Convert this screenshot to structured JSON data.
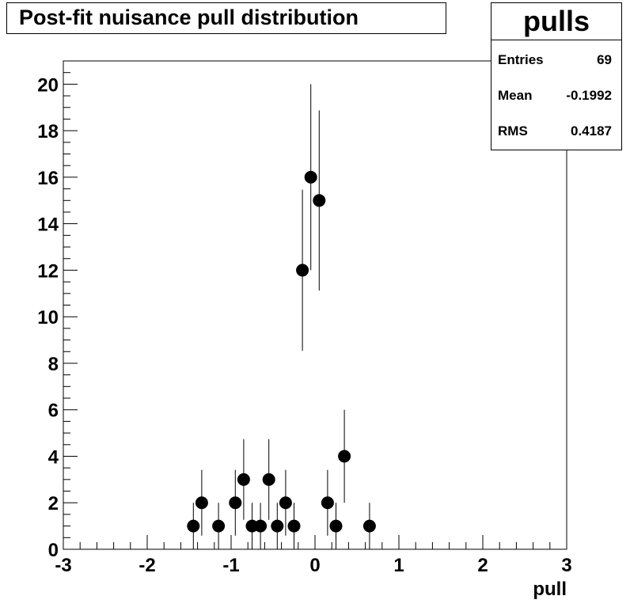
{
  "title": "Post-fit nuisance pull distribution",
  "stats": {
    "name": "pulls",
    "rows": [
      {
        "label": "Entries",
        "value": "69"
      },
      {
        "label": "Mean",
        "value": "-0.1992"
      },
      {
        "label": "RMS",
        "value": "0.4187"
      }
    ]
  },
  "chart_data": {
    "type": "scatter",
    "title": "Post-fit nuisance pull distribution",
    "xlabel": "pull",
    "ylabel": "",
    "xlim": [
      -3,
      3
    ],
    "ylim": [
      0,
      21
    ],
    "xticks": [
      "-3",
      "-2",
      "-1",
      "0",
      "1",
      "2",
      "3"
    ],
    "yticks": [
      "0",
      "2",
      "4",
      "6",
      "8",
      "10",
      "12",
      "14",
      "16",
      "18",
      "20"
    ],
    "grid": false,
    "legend": "top-right",
    "marker_color": "#000000",
    "x": [
      -1.45,
      -1.35,
      -1.15,
      -0.95,
      -0.85,
      -0.75,
      -0.65,
      -0.55,
      -0.45,
      -0.35,
      -0.25,
      -0.15,
      -0.05,
      0.05,
      0.15,
      0.25,
      0.35,
      0.65
    ],
    "y": [
      1,
      2,
      1,
      2,
      3,
      1,
      1,
      3,
      1,
      2,
      1,
      12,
      16,
      15,
      2,
      1,
      4,
      1
    ]
  }
}
